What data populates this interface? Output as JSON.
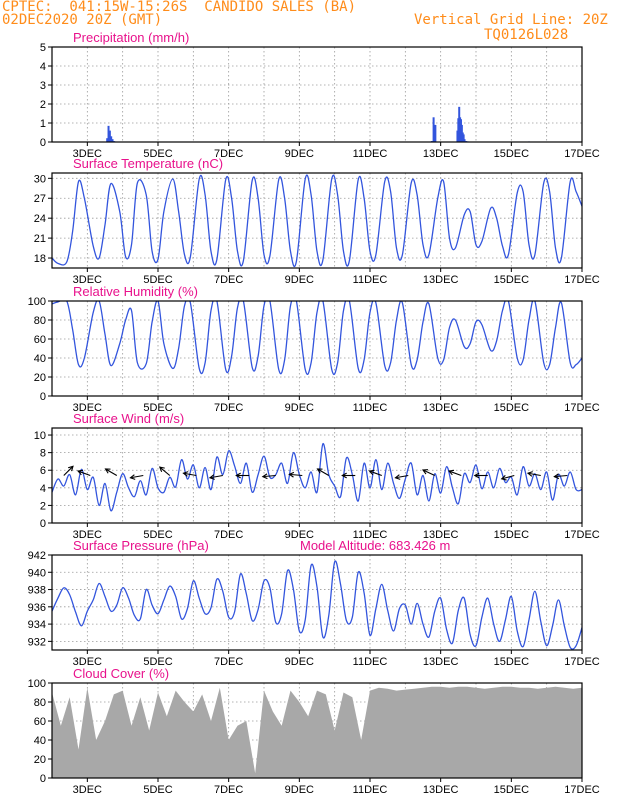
{
  "header": {
    "line1": "CPTEC:  041:15W-15:26S  CANDIDO SALES (BA)",
    "line2": "02DEC2020 20Z (GMT)",
    "grid_note": "Vertical Grid Line: 20Z",
    "product_code": "TQ0126L028"
  },
  "colors": {
    "header_text": "#ff8c1a",
    "panel_title": "#e8128c",
    "series_line": "#3355dd",
    "cloud_fill": "#a8a8a8",
    "grid": "#9a9a9a"
  },
  "x_axis": {
    "tick_labels": [
      "3DEC",
      "5DEC",
      "7DEC",
      "9DEC",
      "11DEC",
      "13DEC",
      "15DEC",
      "17DEC"
    ],
    "start_hour": 0,
    "end_hour": 360
  },
  "chart_data": [
    {
      "id": "precip",
      "type": "bar",
      "title": "Precipitation (mm/h)",
      "ylim": [
        0,
        5
      ],
      "yticks": [
        0,
        1,
        2,
        3,
        4,
        5
      ],
      "grid": true,
      "x_hours": [
        37.5,
        38.4,
        39.3,
        40.2,
        41.1,
        42.0,
        42.9,
        258.0,
        259.2,
        260.4,
        275.4,
        276.0,
        276.6,
        277.2,
        277.8,
        278.4,
        279.0,
        279.6,
        280.2,
        281.4,
        282.6,
        324.0
      ],
      "values": [
        0.2,
        0.85,
        0.6,
        0.3,
        0.15,
        0.05,
        0.03,
        0.05,
        1.3,
        0.9,
        0.6,
        1.25,
        1.85,
        1.3,
        1.2,
        0.9,
        0.5,
        0.4,
        0.15,
        0.05,
        0.03,
        0.03
      ]
    },
    {
      "id": "temperature",
      "type": "line",
      "title": "Surface Temperature (nC)",
      "ylim": [
        16.5,
        30.8
      ],
      "yticks": [
        18,
        21,
        24,
        27,
        30
      ],
      "grid": true,
      "x_hours": [
        0,
        4,
        10,
        14,
        18,
        22,
        28,
        32,
        36,
        40,
        46,
        50,
        54,
        58,
        64,
        68,
        72,
        76,
        82,
        86,
        90,
        94,
        100,
        104,
        108,
        112,
        118,
        122,
        126,
        130,
        136,
        140,
        144,
        148,
        154,
        158,
        162,
        166,
        172,
        176,
        180,
        184,
        190,
        194,
        198,
        202,
        208,
        212,
        216,
        220,
        226,
        230,
        234,
        238,
        244,
        248,
        252,
        256,
        262,
        266,
        270,
        274,
        280,
        284,
        288,
        292,
        298,
        302,
        306,
        310,
        316,
        320,
        324,
        328,
        334,
        338,
        342,
        346,
        352,
        356,
        360
      ],
      "values": [
        18.0,
        17.2,
        17.4,
        22.0,
        29.5,
        27.0,
        19.8,
        18.0,
        23.0,
        29.2,
        25.0,
        18.2,
        20.0,
        29.3,
        27.5,
        19.0,
        17.8,
        25.0,
        29.9,
        25.0,
        18.5,
        18.2,
        29.9,
        27.5,
        19.0,
        17.8,
        29.8,
        27.0,
        19.0,
        17.6,
        29.7,
        27.0,
        18.5,
        18.3,
        29.8,
        27.0,
        19.0,
        17.5,
        29.9,
        27.5,
        19.0,
        17.7,
        29.9,
        27.5,
        19.0,
        17.6,
        29.8,
        27.0,
        19.0,
        18.5,
        29.5,
        28.0,
        19.5,
        18.5,
        29.3,
        27.5,
        20.0,
        18.5,
        27.0,
        29.5,
        21.0,
        19.5,
        24.5,
        25.0,
        20.0,
        20.5,
        25.5,
        24.0,
        19.8,
        18.5,
        27.8,
        28.0,
        20.0,
        18.5,
        29.3,
        28.0,
        19.5,
        18.0,
        29.5,
        28.0,
        25.8
      ]
    },
    {
      "id": "humidity",
      "type": "line",
      "title": "Relative Humidity (%)",
      "ylim": [
        0,
        100
      ],
      "yticks": [
        0,
        20,
        40,
        60,
        80,
        100
      ],
      "grid": true,
      "x_hours": [
        0,
        4,
        10,
        14,
        18,
        22,
        28,
        32,
        36,
        40,
        46,
        50,
        54,
        58,
        64,
        68,
        72,
        76,
        82,
        86,
        90,
        94,
        100,
        104,
        108,
        112,
        118,
        122,
        126,
        130,
        136,
        140,
        144,
        148,
        154,
        158,
        162,
        166,
        172,
        176,
        180,
        184,
        190,
        194,
        198,
        202,
        208,
        212,
        216,
        220,
        226,
        230,
        234,
        238,
        244,
        248,
        252,
        256,
        262,
        266,
        270,
        274,
        280,
        284,
        288,
        292,
        298,
        302,
        306,
        310,
        316,
        320,
        324,
        328,
        334,
        338,
        342,
        346,
        352,
        356,
        360
      ],
      "values": [
        97,
        99,
        100,
        70,
        33,
        40,
        88,
        100,
        65,
        32,
        55,
        80,
        90,
        35,
        34,
        78,
        100,
        55,
        29,
        50,
        95,
        98,
        29,
        35,
        90,
        100,
        28,
        42,
        93,
        100,
        30,
        42,
        95,
        100,
        28,
        38,
        95,
        100,
        28,
        35,
        88,
        100,
        28,
        35,
        90,
        100,
        29,
        38,
        88,
        98,
        32,
        35,
        80,
        98,
        33,
        38,
        78,
        97,
        40,
        38,
        72,
        80,
        52,
        55,
        78,
        75,
        48,
        58,
        90,
        100,
        40,
        38,
        80,
        100,
        35,
        33,
        72,
        98,
        35,
        33,
        40
      ]
    },
    {
      "id": "wind",
      "type": "line",
      "title": "Surface Wind (m/s)",
      "ylim": [
        0,
        10.8
      ],
      "yticks": [
        0,
        2,
        4,
        6,
        8,
        10
      ],
      "grid": true,
      "x_hours": [
        0,
        4,
        8,
        12,
        16,
        20,
        24,
        28,
        32,
        36,
        40,
        44,
        48,
        52,
        56,
        60,
        64,
        68,
        72,
        76,
        80,
        84,
        88,
        92,
        96,
        100,
        104,
        108,
        112,
        116,
        120,
        124,
        128,
        132,
        136,
        140,
        144,
        148,
        152,
        156,
        160,
        164,
        168,
        172,
        176,
        180,
        184,
        188,
        192,
        196,
        200,
        204,
        208,
        212,
        216,
        220,
        224,
        228,
        232,
        236,
        240,
        244,
        248,
        252,
        256,
        260,
        264,
        268,
        272,
        276,
        280,
        284,
        288,
        292,
        296,
        300,
        304,
        308,
        312,
        316,
        320,
        324,
        328,
        332,
        336,
        340,
        344,
        348,
        352,
        356,
        360
      ],
      "values": [
        3.5,
        5.0,
        4.2,
        5.5,
        3.2,
        6.1,
        3.8,
        5.2,
        2.0,
        4.5,
        1.4,
        3.5,
        5.6,
        4.0,
        3.0,
        4.8,
        3.2,
        6.2,
        4.0,
        3.5,
        5.2,
        4.1,
        7.2,
        5.0,
        6.6,
        4.0,
        6.3,
        3.8,
        7.5,
        5.5,
        8.2,
        6.5,
        4.5,
        6.8,
        3.5,
        5.5,
        7.6,
        5.2,
        5.5,
        6.8,
        4.5,
        8.0,
        5.5,
        4.0,
        5.8,
        3.5,
        9.0,
        5.5,
        4.2,
        3.0,
        7.4,
        5.5,
        2.5,
        6.8,
        4.0,
        7.2,
        3.8,
        6.8,
        4.5,
        2.8,
        5.0,
        6.8,
        3.2,
        5.4,
        2.5,
        5.6,
        3.4,
        6.4,
        4.0,
        2.2,
        5.6,
        4.6,
        6.6,
        3.9,
        5.8,
        4.0,
        6.2,
        4.6,
        5.2,
        3.2,
        6.4,
        4.2,
        5.6,
        3.8,
        5.8,
        2.6,
        5.5,
        4.2,
        5.8,
        3.8,
        3.8
      ]
    },
    {
      "id": "pressure",
      "type": "line",
      "title": "Surface Pressure (hPa)",
      "annotation": "Model Altitude: 683.426  m",
      "ylim": [
        931,
        942
      ],
      "yticks": [
        932,
        934,
        936,
        938,
        940,
        942
      ],
      "grid": true,
      "x_hours": [
        0,
        4,
        8,
        12,
        16,
        20,
        24,
        28,
        32,
        36,
        40,
        44,
        48,
        52,
        56,
        60,
        64,
        68,
        72,
        76,
        80,
        84,
        88,
        92,
        96,
        100,
        104,
        108,
        112,
        116,
        120,
        124,
        128,
        132,
        136,
        140,
        144,
        148,
        152,
        156,
        160,
        164,
        168,
        172,
        176,
        180,
        184,
        188,
        192,
        196,
        200,
        204,
        208,
        212,
        216,
        220,
        224,
        228,
        232,
        236,
        240,
        244,
        248,
        252,
        256,
        260,
        264,
        268,
        272,
        276,
        280,
        284,
        288,
        292,
        296,
        300,
        304,
        308,
        312,
        316,
        320,
        324,
        328,
        332,
        336,
        340,
        344,
        348,
        352,
        356,
        360
      ],
      "values": [
        935.5,
        937.0,
        938.2,
        937.4,
        935.4,
        933.8,
        935.5,
        936.8,
        938.7,
        937.2,
        935.5,
        936.2,
        938.2,
        937.0,
        935.0,
        934.6,
        938.0,
        936.2,
        935.2,
        936.8,
        938.4,
        937.2,
        934.6,
        935.8,
        939.0,
        937.0,
        935.2,
        935.9,
        939.2,
        937.8,
        934.8,
        935.4,
        939.8,
        937.5,
        934.4,
        935.7,
        939.0,
        938.2,
        934.2,
        935.2,
        940.2,
        938.0,
        933.2,
        934.5,
        940.8,
        938.3,
        932.5,
        935.0,
        941.2,
        938.6,
        934.4,
        934.8,
        940.0,
        937.6,
        932.7,
        935.8,
        938.6,
        935.6,
        933.2,
        935.8,
        936.2,
        934.0,
        936.4,
        934.0,
        932.5,
        935.5,
        937.0,
        933.4,
        931.8,
        935.6,
        937.0,
        932.8,
        931.5,
        934.8,
        937.0,
        934.0,
        932.0,
        934.5,
        937.2,
        933.2,
        931.4,
        934.5,
        937.8,
        934.3,
        931.5,
        933.8,
        936.8,
        933.8,
        931.3,
        931.5,
        933.6
      ]
    },
    {
      "id": "cloud",
      "type": "area",
      "title": "Cloud Cover (%)",
      "ylim": [
        0,
        100
      ],
      "yticks": [
        0,
        20,
        40,
        60,
        80,
        100
      ],
      "grid": true,
      "x_hours": [
        0,
        6,
        12,
        18,
        24,
        30,
        36,
        42,
        48,
        54,
        60,
        66,
        72,
        78,
        84,
        90,
        96,
        102,
        108,
        114,
        120,
        126,
        132,
        138,
        144,
        150,
        156,
        162,
        168,
        174,
        180,
        186,
        192,
        198,
        204,
        210,
        216,
        222,
        228,
        234,
        240,
        246,
        252,
        258,
        264,
        270,
        276,
        282,
        288,
        294,
        300,
        306,
        312,
        318,
        324,
        330,
        336,
        342,
        348,
        354,
        360
      ],
      "values": [
        90,
        55,
        85,
        30,
        95,
        40,
        60,
        88,
        92,
        55,
        85,
        50,
        90,
        65,
        92,
        80,
        70,
        88,
        60,
        95,
        40,
        55,
        60,
        5,
        92,
        70,
        55,
        92,
        80,
        65,
        92,
        88,
        50,
        90,
        85,
        40,
        92,
        95,
        94,
        92,
        93,
        94,
        95,
        96,
        96,
        95,
        96,
        96,
        95,
        94,
        95,
        96,
        96,
        95,
        95,
        94,
        95,
        96,
        95,
        94,
        95
      ]
    }
  ]
}
